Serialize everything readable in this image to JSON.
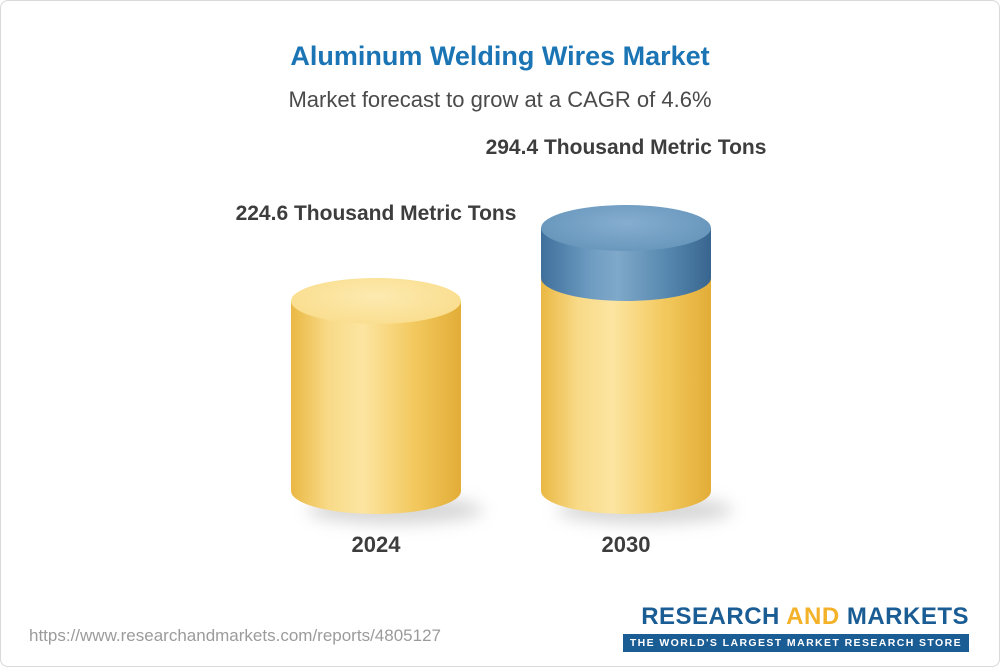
{
  "chart_data": {
    "type": "bar",
    "title": "Aluminum Welding Wires Market",
    "subtitle": "Market forecast to grow at a CAGR of 4.6%",
    "categories": [
      "2024",
      "2030"
    ],
    "values": [
      224.6,
      294.4
    ],
    "unit": "Thousand Metric Tons",
    "value_labels": [
      "224.6 Thousand Metric Tons",
      "294.4 Thousand Metric Tons"
    ],
    "cagr_percent": 4.6,
    "legend": "none",
    "axes": "none",
    "colors": {
      "bar_yellow": "#f6cf6d",
      "bar_blue_segment": "#5e8fb5",
      "title_blue": "#1b74b4",
      "label_text": "#3d3d3d"
    },
    "notes": "3D cylinder pictograph; 2030 cylinder has a blue top segment representing growth over 2024"
  },
  "footer": {
    "url": "https://www.researchandmarkets.com/reports/4805127",
    "logo": {
      "word1": "RESEARCH",
      "word2": "AND",
      "word3": "MARKETS",
      "tagline": "THE WORLD'S LARGEST MARKET RESEARCH STORE"
    }
  }
}
